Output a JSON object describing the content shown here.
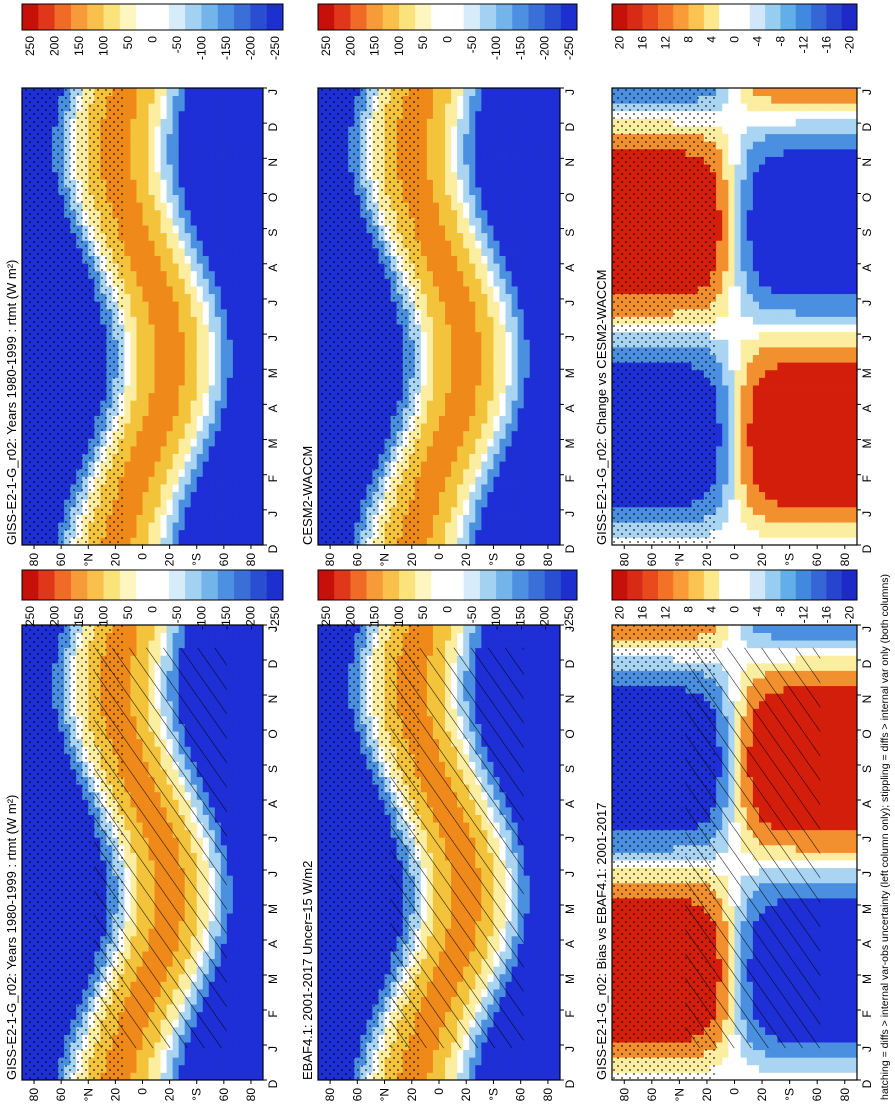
{
  "footnote": "hatching = diffs > internal var-obs uncertainty (left column only); stippling = diffs > internal var only (both columns)",
  "colorbars": {
    "flux": [
      "250",
      "200",
      "150",
      "100",
      "50",
      "0",
      "-50",
      "-100",
      "-150",
      "-200",
      "-250"
    ],
    "diff": [
      "20",
      "16",
      "12",
      "8",
      "4",
      "0",
      "-4",
      "-8",
      "-12",
      "-16",
      "-20"
    ]
  },
  "axes": {
    "months": [
      "D",
      "J",
      "F",
      "M",
      "A",
      "M",
      "J",
      "J",
      "A",
      "S",
      "O",
      "N",
      "D",
      "J"
    ],
    "lat_ticks": [
      "80",
      "60",
      "°N",
      "20",
      "0",
      "20",
      "°S",
      "60",
      "80"
    ]
  },
  "colors": {
    "neg_strong": "#1e2fd6",
    "neg_mid": "#4a8fe0",
    "neg_light": "#a9d4f2",
    "zero": "#ffffff",
    "pos_light": "#fbeea0",
    "pos_mid": "#f3c33c",
    "pos_strong": "#d41e0c"
  },
  "chart_data": [
    {
      "type": "heatmap",
      "title": "GISS-E2-1-G_r02: Years 1980-1999 : rtmt (W m²)",
      "x": "month (Dec to Jan)",
      "y": "latitude 90N to 90S",
      "zlim": [
        -275,
        275
      ],
      "overlays": [
        "hatching",
        "stippling"
      ]
    },
    {
      "type": "heatmap",
      "title": "EBAF4.1: 2001-2017 Uncer=15 W/m2",
      "x": "month (Dec to Jan)",
      "y": "latitude 90N to 90S",
      "zlim": [
        -275,
        275
      ],
      "overlays": [
        "hatching",
        "stippling"
      ]
    },
    {
      "type": "heatmap",
      "title": "GISS-E2-1-G_r02: Bias vs EBAF4.1: 2001-2017",
      "x": "month (Dec to Jan)",
      "y": "latitude 90N to 90S",
      "zlim": [
        -22,
        22
      ],
      "overlays": [
        "hatching",
        "stippling"
      ]
    },
    {
      "type": "heatmap",
      "title": "GISS-E2-1-G_r02: Years 1980-1999 : rtmt (W m²)",
      "x": "month (Dec to Jan)",
      "y": "latitude 90N to 90S",
      "zlim": [
        -275,
        275
      ],
      "overlays": [
        "stippling"
      ]
    },
    {
      "type": "heatmap",
      "title": "CESM2-WACCM",
      "x": "month (Dec to Jan)",
      "y": "latitude 90N to 90S",
      "zlim": [
        -275,
        275
      ],
      "overlays": [
        "stippling"
      ]
    },
    {
      "type": "heatmap",
      "title": "GISS-E2-1-G_r02: Change vs CESM2-WACCM",
      "x": "month (Dec to Jan)",
      "y": "latitude 90N to 90S",
      "zlim": [
        -22,
        22
      ],
      "overlays": [
        "stippling"
      ]
    }
  ]
}
